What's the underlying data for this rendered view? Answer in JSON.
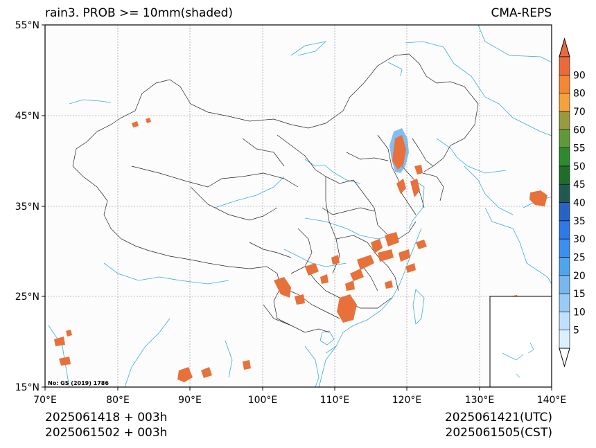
{
  "map": {
    "title": "rain3. PROB >= 10mm(shaded)",
    "model": "CMA-REPS",
    "init_utc_line": "2025061418  +  003h",
    "init_cst_line": "2025061502  +  003h",
    "valid_utc": "2025061421(UTC)",
    "valid_cst": "2025061505(CST)",
    "approval_number": "No: GS (2019) 1786",
    "lon_labels": [
      "70°E",
      "80°E",
      "90°E",
      "100°E",
      "110°E",
      "120°E",
      "130°E",
      "140°E"
    ],
    "lat_labels": [
      "55°N",
      "45°N",
      "35°N",
      "25°N",
      "15°N"
    ],
    "extent": {
      "lon_min": 70,
      "lon_max": 140,
      "lat_min": 15,
      "lat_max": 55
    },
    "gridlines": true
  },
  "colorbar": {
    "levels": [
      "5",
      "10",
      "15",
      "20",
      "25",
      "30",
      "35",
      "40",
      "45",
      "50",
      "55",
      "60",
      "70",
      "80",
      "90"
    ],
    "colors": [
      "#dcefff",
      "#bfe0fb",
      "#99ccf4",
      "#76b7f0",
      "#4fa4ee",
      "#3b8ff0",
      "#2e78e8",
      "#2563c8",
      "#1e5a52",
      "#1e6e2a",
      "#2e8a2e",
      "#5e9a3a",
      "#999a40",
      "#f5a23a",
      "#f58634",
      "#eb6a3c"
    ],
    "extend": "both"
  },
  "colors": {
    "prob_shade": "#e8703a",
    "coast": "#3aa9df",
    "border": "#222222",
    "grid": "#888888"
  }
}
